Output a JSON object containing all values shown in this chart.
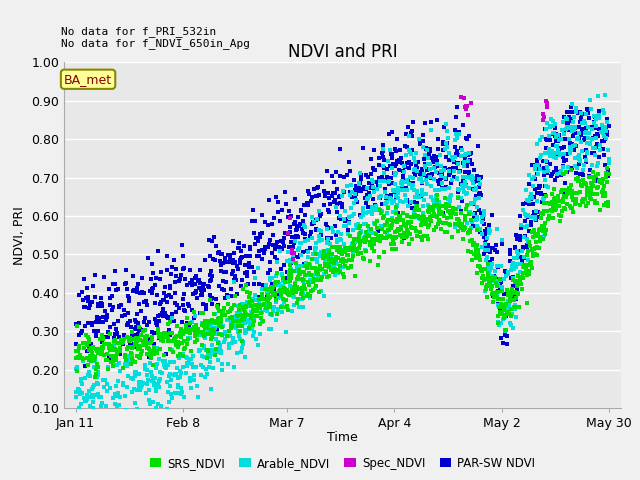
{
  "title": "NDVI and PRI",
  "ylabel": "NDVI, PRI",
  "xlabel": "Time",
  "annotation_line1": "No data for f_PRI_532in",
  "annotation_line2": "No data for f_NDVI_650in_Apg",
  "ba_met_label": "BA_met",
  "ylim": [
    0.1,
    1.0
  ],
  "yticks": [
    0.1,
    0.2,
    0.3,
    0.4,
    0.5,
    0.6,
    0.7,
    0.8,
    0.9,
    1.0
  ],
  "xtick_labels": [
    "Jan 11",
    "Feb 8",
    "Mar 7",
    "Apr 4",
    "May 2",
    "May 30"
  ],
  "xtick_days": [
    0,
    28,
    55,
    83,
    111,
    139
  ],
  "total_days": 139,
  "colors": {
    "SRS_NDVI": "#00dd00",
    "Arable_NDVI": "#00dddd",
    "Spec_NDVI": "#cc00cc",
    "PAR_SW_NDVI": "#0000cc"
  },
  "background_color": "#f0f0f0",
  "plot_bg_color": "#e8e8e8",
  "grid_color": "#ffffff",
  "title_fontsize": 12,
  "axis_fontsize": 9,
  "tick_fontsize": 9,
  "marker_size": 10,
  "scatter_density": 0.55
}
